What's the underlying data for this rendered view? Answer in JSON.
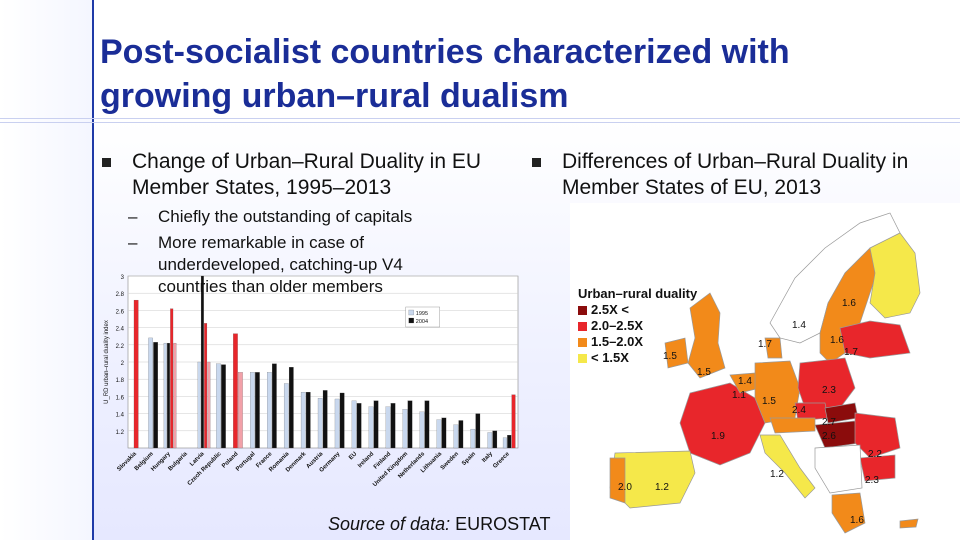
{
  "slide": {
    "title": "Post-socialist countries characterized with growing urban–rural dualism",
    "left_bullet": "Change of Urban–Rural Duality in EU Member States, 1995–2013",
    "sub_bullets": [
      "Chiefly the outstanding of capitals",
      "More remarkable in case of underdeveloped, catching-up V4 countries than older members"
    ],
    "right_bullet": "Differences of Urban–Rural Duality in Member States of EU, 2013",
    "source_label": "Source of data:",
    "source_value": "EUROSTAT",
    "dash": "–"
  },
  "chart_data": {
    "type": "bar",
    "ylabel": "U_RD urban–rural duality index",
    "ylim": [
      1,
      3
    ],
    "yticks": [
      "1.2",
      "1.4",
      "1.6",
      "1.8",
      "2",
      "2.2",
      "2.4",
      "2.6",
      "2.8",
      "3"
    ],
    "categories": [
      "Slovakia",
      "Belgium",
      "Hungary",
      "Bulgaria",
      "Latvia",
      "Czech Republic",
      "Poland",
      "Portugal",
      "France",
      "Romania",
      "Denmark",
      "Austria",
      "Germany",
      "EU",
      "Ireland",
      "Finland",
      "United Kingdom",
      "Netherlands",
      "Lithuania",
      "Sweden",
      "Spain",
      "Italy",
      "Greece"
    ],
    "series": [
      {
        "name": "1995",
        "color": "#c9d8ee",
        "values": [
          null,
          2.28,
          2.22,
          null,
          2.0,
          1.98,
          null,
          1.88,
          1.88,
          1.75,
          1.65,
          1.58,
          1.57,
          1.55,
          1.48,
          1.48,
          1.45,
          1.42,
          1.33,
          1.27,
          1.22,
          1.18,
          1.12
        ]
      },
      {
        "name": "2004",
        "color": "#111111",
        "values": [
          null,
          2.23,
          2.22,
          null,
          3.0,
          1.97,
          null,
          1.88,
          1.98,
          1.94,
          1.65,
          1.67,
          1.64,
          1.52,
          1.55,
          1.52,
          1.55,
          1.55,
          1.35,
          1.32,
          1.4,
          1.2,
          1.15
        ]
      },
      {
        "name": "",
        "color": "#e8262b",
        "values": [
          2.72,
          null,
          2.62,
          null,
          2.45,
          null,
          2.33,
          null,
          null,
          null,
          null,
          null,
          null,
          null,
          null,
          null,
          null,
          null,
          null,
          null,
          null,
          null,
          1.62
        ]
      },
      {
        "name": "",
        "color": "#f2a0a8",
        "values": [
          null,
          null,
          2.22,
          null,
          2.0,
          null,
          1.88,
          null,
          null,
          null,
          null,
          null,
          null,
          null,
          null,
          null,
          null,
          null,
          null,
          null,
          null,
          null,
          null
        ]
      }
    ]
  },
  "map": {
    "legend_title": "Urban–rural duality",
    "legend_items": [
      {
        "label": "2.5X <",
        "color": "#8b0c0c"
      },
      {
        "label": "2.0–2.5X",
        "color": "#e8262b"
      },
      {
        "label": "1.5–2.0X",
        "color": "#f28a1a"
      },
      {
        "label": "< 1.5X",
        "color": "#f5e84a"
      }
    ],
    "labels": [
      "1.6",
      "1.4",
      "1.7",
      "1.6",
      "1.7",
      "1.5",
      "1.5",
      "1.4",
      "2.3",
      "1.1",
      "1.5",
      "2.4",
      "2.7",
      "1.9",
      "2.6",
      "2.2",
      "1.2",
      "2.3",
      "2.0",
      "1.2",
      "1.6"
    ]
  }
}
